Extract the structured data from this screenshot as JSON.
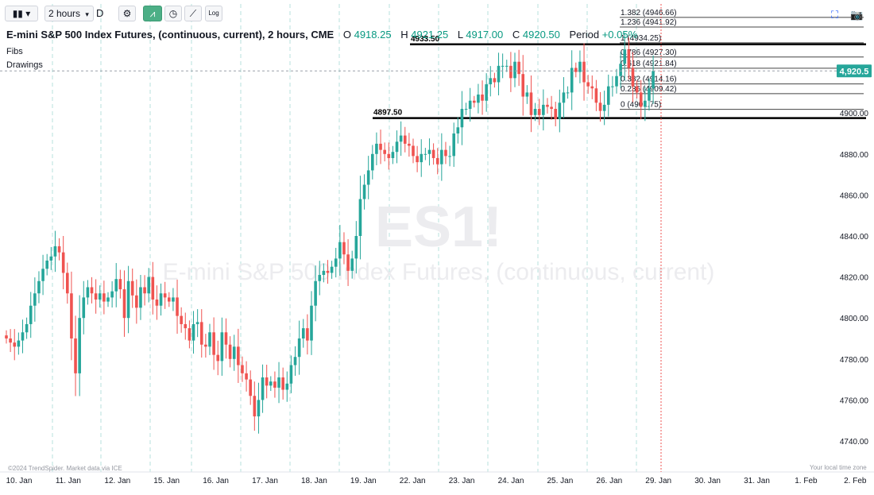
{
  "toolbar": {
    "interval": "2 hours",
    "range_button": "D",
    "log_button": "Log"
  },
  "header": {
    "title": "E-mini S&P 500 Index Futures, (continuous, current), 2 hours, CME",
    "open_label": "O",
    "open_value": "4918.25",
    "high_label": "H",
    "high_value": "4921.25",
    "low_label": "L",
    "low_value": "4917.00",
    "close_label": "C",
    "close_value": "4920.50",
    "period_label": "Period",
    "period_value": "+0.05%"
  },
  "panels": {
    "fibs": "Fibs",
    "drawings": "Drawings"
  },
  "footer": {
    "copyright": "©2024 TrendSpider. Market data via ICE",
    "timezone": "Your local time zone"
  },
  "watermark": {
    "symbol": "ES1!",
    "name": "E-mini S&P 500 Index Futures, (continuous, current)"
  },
  "colors": {
    "up": "#26a69a",
    "down": "#ef5350",
    "price_label": "#26a69a"
  },
  "chart_data": {
    "type": "candlestick",
    "title": "E-mini S&P 500 Index Futures, (continuous, current), 2 hours, CME",
    "ylim": [
      4734,
      4956
    ],
    "y_ticks": [
      4740,
      4760,
      4780,
      4800,
      4820,
      4840,
      4860,
      4880,
      4900
    ],
    "y_tick_labels": [
      "4740.00",
      "4760.00",
      "4780.00",
      "4800.00",
      "4820.00",
      "4840.00",
      "4860.00",
      "4880.00",
      "4900.00"
    ],
    "x_labels": [
      "10. Jan",
      "11. Jan",
      "12. Jan",
      "15. Jan",
      "16. Jan",
      "17. Jan",
      "18. Jan",
      "19. Jan",
      "22. Jan",
      "23. Jan",
      "24. Jan",
      "25. Jan",
      "26. Jan",
      "29. Jan",
      "30. Jan",
      "31. Jan",
      "1. Feb",
      "2. Feb"
    ],
    "current_price": 4920.5,
    "current_price_label": "4,920.5",
    "horizontal_levels": [
      {
        "label": "4933.50",
        "value": 4933.5
      },
      {
        "label": "4897.50",
        "value": 4897.5
      }
    ],
    "fib_levels": [
      {
        "label": "1.382 (4946.66)",
        "value": 4946.66
      },
      {
        "label": "1.236 (4941.92)",
        "value": 4941.92
      },
      {
        "label": "1 (4934.25)",
        "value": 4934.25
      },
      {
        "label": "0.786 (4927.30)",
        "value": 4927.3
      },
      {
        "label": "0.618 (4921.84)",
        "value": 4921.84
      },
      {
        "label": "0.382 (4914.16)",
        "value": 4914.16
      },
      {
        "label": "0.236 (4909.42)",
        "value": 4909.42
      },
      {
        "label": "0 (4901.75)",
        "value": 4901.75
      }
    ],
    "closes": [
      4790,
      4788,
      4786,
      4789,
      4793,
      4797,
      4806,
      4812,
      4818,
      4824,
      4828,
      4830,
      4835,
      4832,
      4822,
      4812,
      4790,
      4773,
      4800,
      4810,
      4815,
      4812,
      4809,
      4812,
      4808,
      4810,
      4813,
      4819,
      4814,
      4800,
      4818,
      4811,
      4805,
      4815,
      4812,
      4820,
      4809,
      4806,
      4812,
      4810,
      4808,
      4810,
      4801,
      4797,
      4795,
      4789,
      4797,
      4798,
      4787,
      4786,
      4793,
      4782,
      4779,
      4793,
      4787,
      4780,
      4786,
      4777,
      4773,
      4770,
      4762,
      4752,
      4760,
      4771,
      4767,
      4769,
      4766,
      4771,
      4765,
      4768,
      4777,
      4781,
      4790,
      4795,
      4789,
      4806,
      4818,
      4821,
      4823,
      4822,
      4825,
      4829,
      4837,
      4831,
      4823,
      4829,
      4840,
      4858,
      4865,
      4872,
      4880,
      4885,
      4882,
      4880,
      4878,
      4881,
      4886,
      4889,
      4885,
      4884,
      4879,
      4876,
      4880,
      4880,
      4882,
      4878,
      4875,
      4882,
      4879,
      4879,
      4890,
      4893,
      4902,
      4902,
      4906,
      4905,
      4909,
      4906,
      4914,
      4917,
      4915,
      4923,
      4923,
      4923,
      4917,
      4925,
      4919,
      4908,
      4910,
      4899,
      4902,
      4899,
      4904,
      4903,
      4902,
      4897,
      4905,
      4910,
      4910,
      4922,
      4920,
      4925,
      4915,
      4913,
      4912,
      4905,
      4901,
      4904,
      4913,
      4913,
      4918,
      4924,
      4931,
      4922,
      4913,
      4910,
      4903,
      4906,
      4912,
      4920.5
    ]
  }
}
